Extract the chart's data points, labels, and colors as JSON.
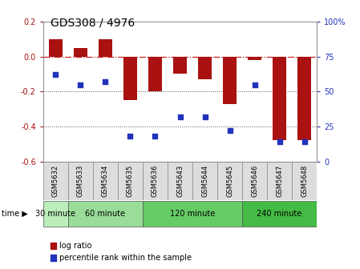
{
  "title": "GDS308 / 4976",
  "samples": [
    "GSM5632",
    "GSM5633",
    "GSM5634",
    "GSM5635",
    "GSM5636",
    "GSM5643",
    "GSM5644",
    "GSM5645",
    "GSM5646",
    "GSM5647",
    "GSM5648"
  ],
  "log_ratio": [
    0.1,
    0.05,
    0.1,
    -0.25,
    -0.2,
    -0.1,
    -0.13,
    -0.27,
    -0.02,
    -0.48,
    -0.48
  ],
  "percentile": [
    62,
    55,
    57,
    18,
    18,
    32,
    32,
    22,
    55,
    14,
    14
  ],
  "groups": [
    {
      "label": "30 minute",
      "indices": [
        0
      ],
      "color": "#bbeebb"
    },
    {
      "label": "60 minute",
      "indices": [
        1,
        2,
        3
      ],
      "color": "#99dd99"
    },
    {
      "label": "120 minute",
      "indices": [
        4,
        5,
        6,
        7
      ],
      "color": "#66cc66"
    },
    {
      "label": "240 minute",
      "indices": [
        8,
        9,
        10
      ],
      "color": "#44bb44"
    }
  ],
  "bar_color": "#aa1111",
  "dot_color": "#2233bb",
  "ylim_left": [
    -0.6,
    0.2
  ],
  "ylim_right": [
    0,
    100
  ],
  "yticks_left": [
    -0.6,
    -0.4,
    -0.2,
    0.0,
    0.2
  ],
  "yticks_right": [
    0,
    25,
    50,
    75,
    100
  ],
  "hline_zero_color": "#cc2222",
  "hline_dotted_color": "#555555",
  "bg_color": "#ffffff",
  "legend_logratio": "log ratio",
  "legend_percentile": "percentile rank within the sample",
  "title_fontsize": 10,
  "tick_fontsize": 7,
  "sample_fontsize": 6,
  "group_fontsize": 7,
  "legend_fontsize": 7
}
